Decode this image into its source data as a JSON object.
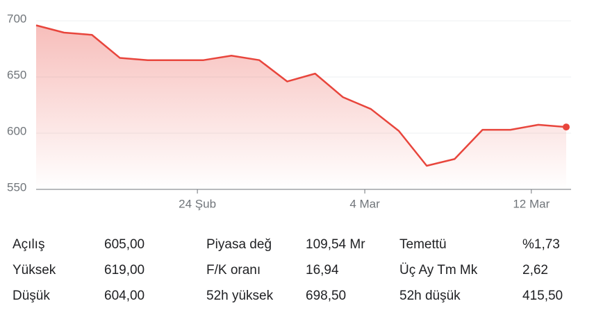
{
  "chart_data": {
    "type": "line",
    "color": "#e8453c",
    "x": [
      0,
      1,
      2,
      3,
      4,
      5,
      6,
      7,
      8,
      9,
      10,
      11,
      12,
      13,
      14,
      15,
      16,
      17,
      18,
      19
    ],
    "values": [
      696,
      689.5,
      687.5,
      667,
      665,
      665,
      665,
      669,
      665,
      646,
      653,
      632,
      621.5,
      602,
      571,
      577,
      603,
      603,
      607.5,
      605.5
    ],
    "xlim": [
      0,
      19
    ],
    "xticks": [
      {
        "value": 5.78,
        "label": "24 Şub"
      },
      {
        "value": 11.78,
        "label": "4 Mar"
      },
      {
        "value": 17.75,
        "label": "12 Mar"
      }
    ],
    "ylim": [
      550,
      700
    ],
    "yticks": [
      550,
      600,
      650,
      700
    ],
    "grid": true
  },
  "stats": {
    "rows": [
      [
        "Açılış",
        "605,00",
        "Piyasa değ",
        "109,54 Mr",
        "Temettü",
        "%1,73"
      ],
      [
        "Yüksek",
        "619,00",
        "F/K oranı",
        "16,94",
        "Üç Ay Tm Mk",
        "2,62"
      ],
      [
        "Düşük",
        "604,00",
        "52h yüksek",
        "698,50",
        "52h düşük",
        "415,50"
      ]
    ]
  }
}
